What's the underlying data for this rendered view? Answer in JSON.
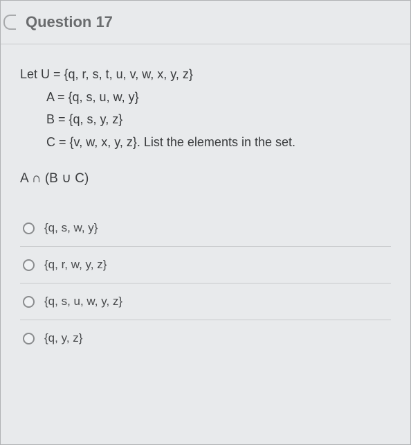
{
  "header": {
    "title": "Question 17"
  },
  "body": {
    "lines": [
      "Let U = {q, r, s, t, u, v, w, x, y, z}",
      "A = {q, s, u, w, y}",
      "B = {q, s, y, z}",
      "C = {v, w, x, y, z}. List the elements in the set."
    ],
    "expression": "A ∩ (B ∪ C)"
  },
  "options": [
    "{q, s, w, y}",
    "{q, r, w, y, z}",
    "{q, s, u, w, y, z}",
    "{q, y, z}"
  ],
  "colors": {
    "background": "#e8eaec",
    "border": "#c8cacc",
    "title_text": "#6a6c6e",
    "body_text": "#3a3c3e",
    "option_text": "#4a4c4e",
    "radio_border": "#8a8c8e"
  },
  "typography": {
    "title_fontsize": 22,
    "body_fontsize": 18,
    "option_fontsize": 17
  }
}
